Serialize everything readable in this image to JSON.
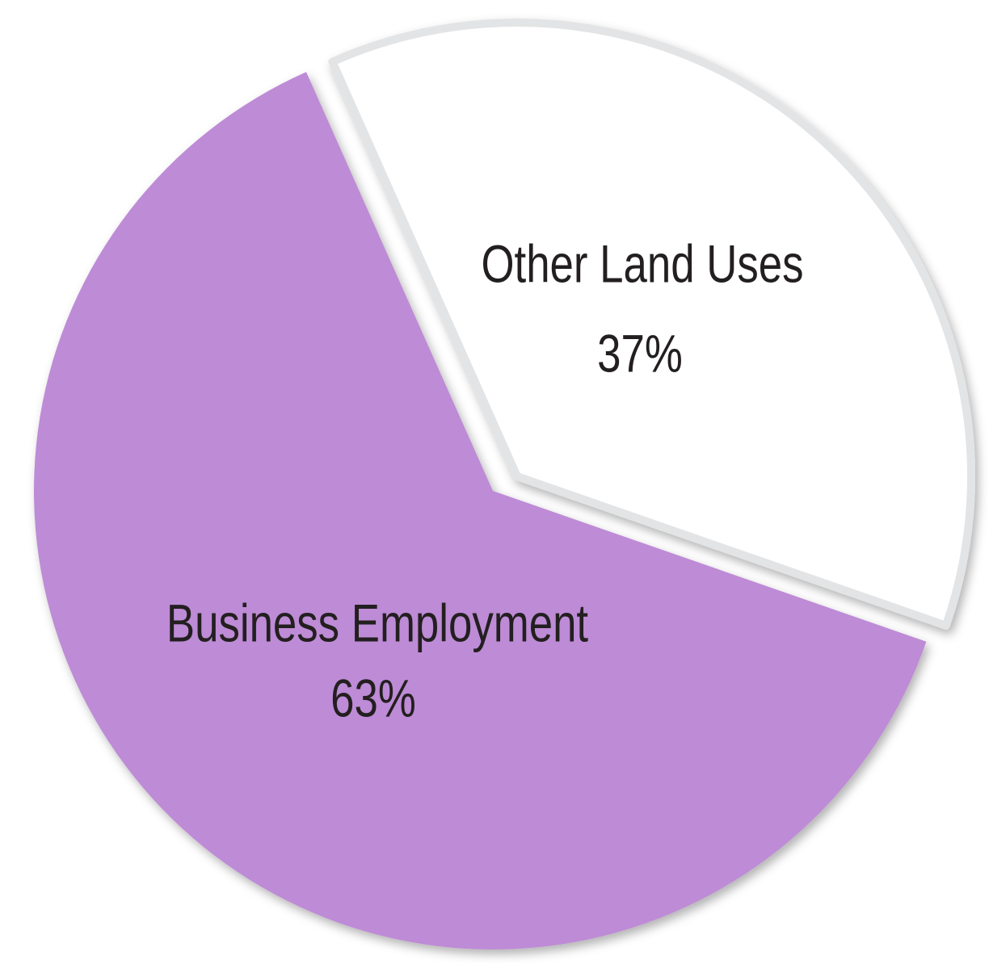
{
  "chart_data": {
    "type": "pie",
    "categories": [
      "Other Land Uses",
      "Business Employment"
    ],
    "values": [
      37,
      63
    ],
    "value_labels": [
      "37%",
      "63%"
    ],
    "colors": [
      "#ffffff",
      "#be8bd6"
    ]
  }
}
